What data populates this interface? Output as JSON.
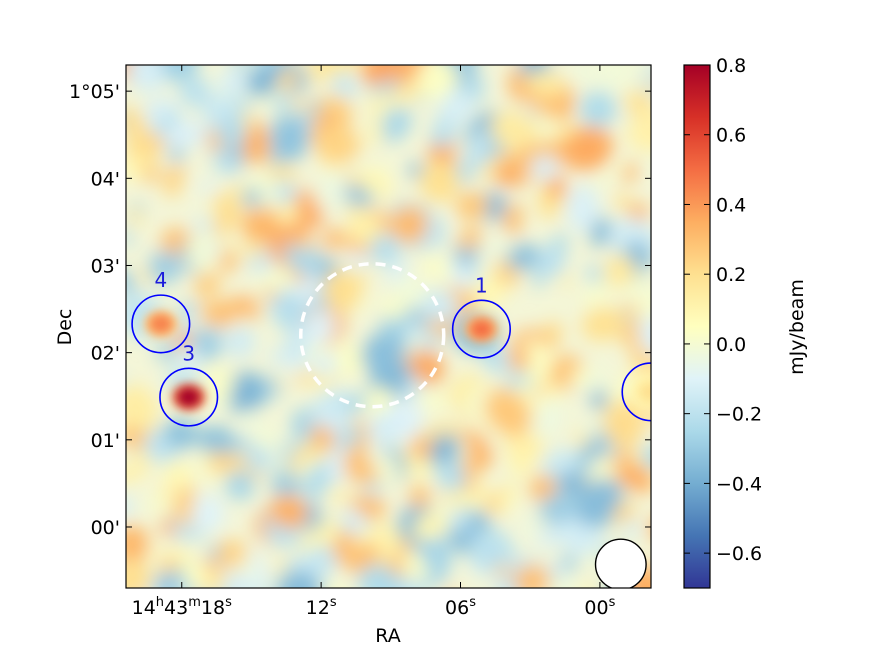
{
  "chart_data": {
    "type": "heatmap",
    "title": "",
    "xlabel": "RA",
    "ylabel": "Dec",
    "x_ticks": [
      {
        "ra_s": 18,
        "text": "14",
        "sup1": "h",
        "mid": "43",
        "sup2": "m",
        "mid2": "18",
        "sup3": "s"
      },
      {
        "ra_s": 12,
        "text": "12",
        "sup1": "s"
      },
      {
        "ra_s": 6,
        "text": "06",
        "sup1": "s"
      },
      {
        "ra_s": 0,
        "text": "00",
        "sup1": "s"
      }
    ],
    "y_ticks": [
      {
        "dec_arcmin": 5,
        "text": "1°05'"
      },
      {
        "dec_arcmin": 4,
        "text": "04'"
      },
      {
        "dec_arcmin": 3,
        "text": "03'"
      },
      {
        "dec_arcmin": 2,
        "text": "02'"
      },
      {
        "dec_arcmin": 1,
        "text": "01'"
      },
      {
        "dec_arcmin": 0,
        "text": "00'"
      }
    ],
    "xlim_ra_s": [
      20.4,
      -2.2
    ],
    "ylim_dec_arcmin": [
      -0.7,
      5.3
    ],
    "colorbar": {
      "label": "mJy/beam",
      "min": -0.7,
      "max": 0.8,
      "ticks": [
        0.8,
        0.6,
        0.4,
        0.2,
        0.0,
        -0.2,
        -0.4,
        -0.6
      ],
      "tick_labels": [
        "0.8",
        "0.6",
        "0.4",
        "0.2",
        "0.0",
        "−0.2",
        "−0.4",
        "−0.6"
      ],
      "colormap": "RdYlBu_r",
      "stops": [
        "#313695",
        "#4575b4",
        "#74add1",
        "#abd9e9",
        "#e0f3f8",
        "#ffffbf",
        "#fee090",
        "#fdae61",
        "#f46d43",
        "#d73027",
        "#a50026"
      ]
    },
    "sources": [
      {
        "label": "1",
        "ra_s": 5.1,
        "dec_arcmin": 2.27,
        "peak_mjy": 0.5
      },
      {
        "label": "3",
        "ra_s": 17.7,
        "dec_arcmin": 1.49,
        "peak_mjy": 0.8
      },
      {
        "label": "4",
        "ra_s": 18.9,
        "dec_arcmin": 2.33,
        "peak_mjy": 0.45
      },
      {
        "label": "",
        "ra_s": -2.2,
        "dec_arcmin": 1.55,
        "peak_mjy": 0.2
      }
    ],
    "field_circle": {
      "ra_s": 9.8,
      "dec_arcmin": 2.2,
      "style": "dashed",
      "color": "#ffffff"
    },
    "beam": {
      "ra_s": -0.9,
      "dec_arcmin": -0.43,
      "color": "#ffffff"
    },
    "source_circle_color": "#0000ff"
  }
}
